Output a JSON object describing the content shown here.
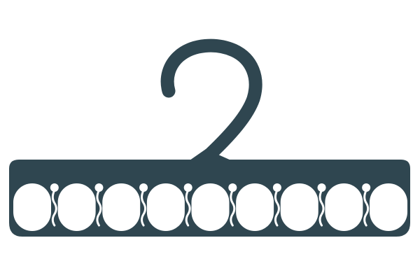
{
  "product": {
    "type": "multi-loop clothes hanger",
    "loop_count": 9
  },
  "colors": {
    "background": "#ffffff",
    "hanger": "#2f4650",
    "hole": "#ffffff"
  }
}
